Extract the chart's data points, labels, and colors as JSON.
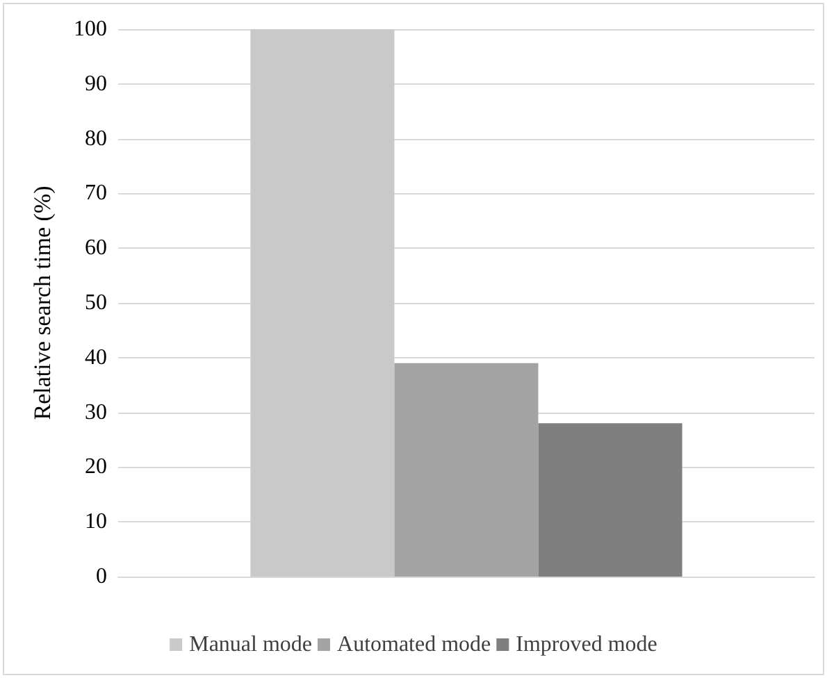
{
  "chart_data": {
    "type": "bar",
    "ylabel": "Relative search time (%)",
    "categories": [
      null
    ],
    "series": [
      {
        "name": "Manual mode",
        "color": "#c9c9c9",
        "values": [
          100
        ]
      },
      {
        "name": "Automated mode",
        "color": "#a3a3a3",
        "values": [
          39
        ]
      },
      {
        "name": "Improved mode",
        "color": "#7f7f7f",
        "values": [
          28
        ]
      }
    ],
    "ylim": [
      0,
      100
    ],
    "yticks": [
      0,
      10,
      20,
      30,
      40,
      50,
      60,
      70,
      80,
      90,
      100
    ],
    "grid": "y",
    "legend": "bottom"
  }
}
